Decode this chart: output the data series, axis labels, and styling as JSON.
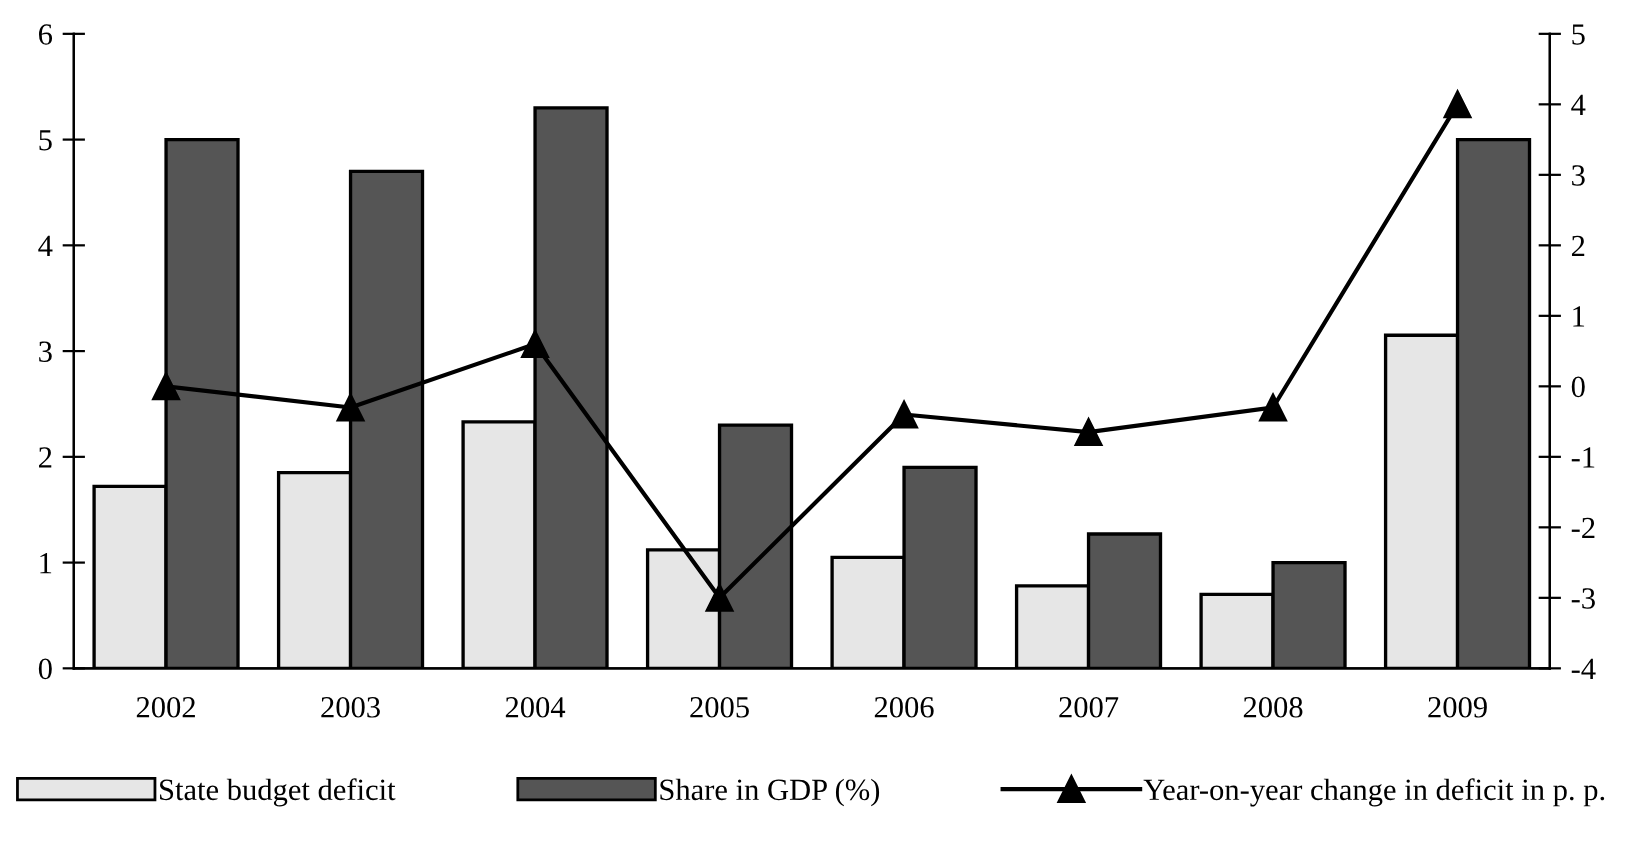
{
  "chart_data": {
    "type": "bar",
    "categories": [
      "2002",
      "2003",
      "2004",
      "2005",
      "2006",
      "2007",
      "2008",
      "2009"
    ],
    "series": [
      {
        "name": "State budget deficit",
        "color": "#e6e6e6",
        "values": [
          1.72,
          1.85,
          2.33,
          1.12,
          1.05,
          0.78,
          0.7,
          3.15
        ]
      },
      {
        "name": "Share in GDP (%)",
        "color": "#555555",
        "values": [
          5.0,
          4.7,
          5.3,
          2.3,
          1.9,
          1.27,
          1.0,
          5.0
        ]
      },
      {
        "name": "Year-on-year change in deficit in p. p.",
        "type": "line",
        "axis": "y2",
        "color": "#000000",
        "marker": "triangle",
        "values": [
          0.0,
          -0.3,
          0.6,
          -3.0,
          -0.4,
          -0.65,
          -0.3,
          4.0
        ]
      }
    ],
    "ylim": [
      0,
      6
    ],
    "yticks": [
      0,
      1,
      2,
      3,
      4,
      5,
      6
    ],
    "y2lim": [
      -4,
      5
    ],
    "y2ticks": [
      -4,
      -3,
      -2,
      -1,
      0,
      1,
      2,
      3,
      4,
      5
    ],
    "grid": false,
    "legend": "bottom"
  }
}
